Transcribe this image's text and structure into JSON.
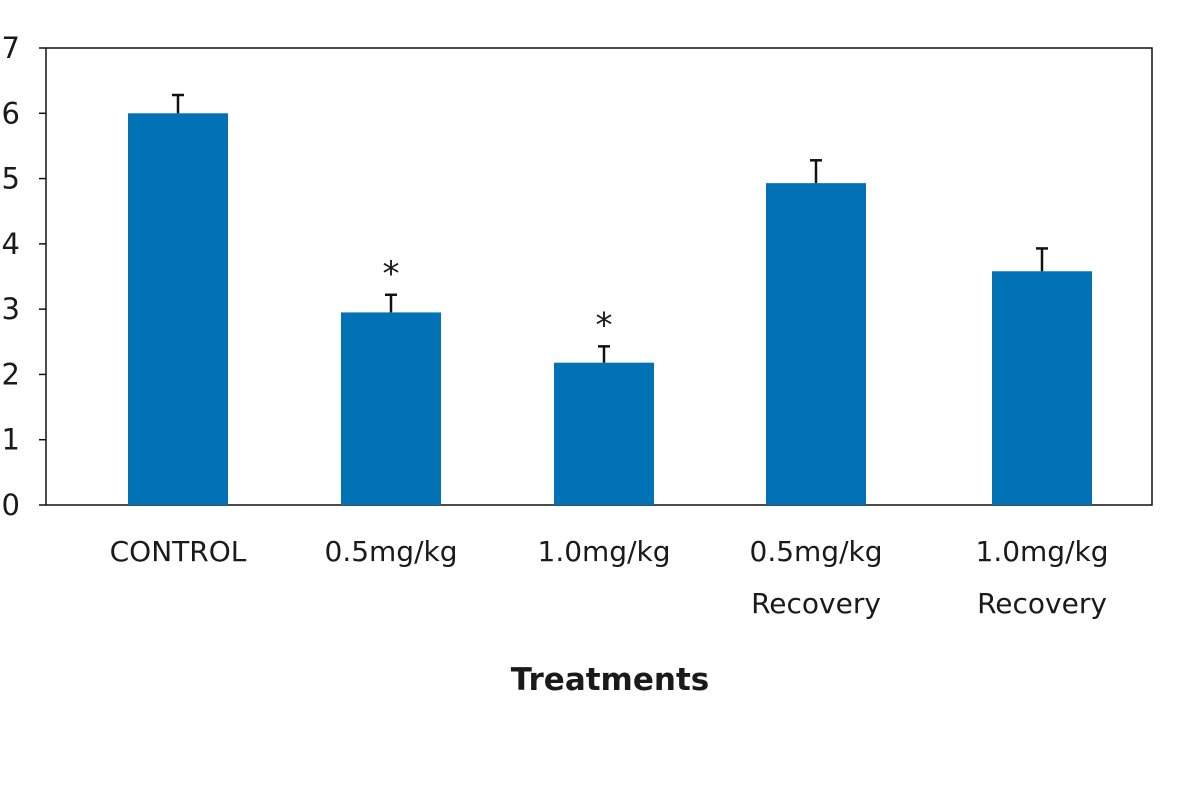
{
  "chart_data": {
    "type": "bar",
    "title": "",
    "xlabel": "Treatments",
    "ylabel": "",
    "ylim": [
      0,
      7
    ],
    "yticks": [
      0,
      1,
      2,
      3,
      4,
      5,
      6,
      7
    ],
    "grid": false,
    "legend": "none",
    "categories": [
      [
        "CONTROL"
      ],
      [
        "0.5mg/kg"
      ],
      [
        "1.0mg/kg"
      ],
      [
        "0.5mg/kg",
        "Recovery"
      ],
      [
        "1.0mg/kg",
        "Recovery"
      ]
    ],
    "values": [
      6.0,
      2.95,
      2.18,
      4.93,
      3.58
    ],
    "errors": [
      0.28,
      0.27,
      0.25,
      0.35,
      0.35
    ],
    "significance": [
      "",
      "*",
      "*",
      "",
      ""
    ],
    "bar_color": "#0072B5",
    "error_color": "#111111",
    "axis_color": "#111111"
  }
}
